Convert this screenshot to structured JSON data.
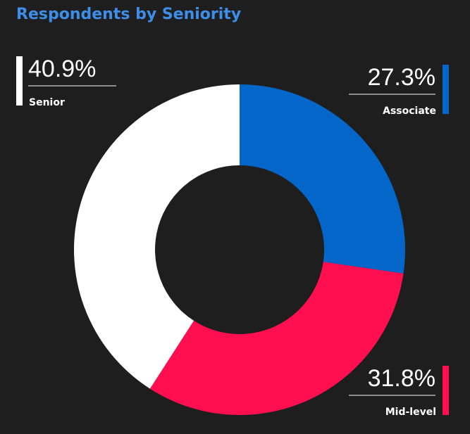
{
  "chart_data": {
    "type": "donut",
    "title": "Respondents by Seniority",
    "categories": [
      "Associate",
      "Mid-level",
      "Senior"
    ],
    "values": [
      27.3,
      31.8,
      40.9
    ],
    "value_labels": [
      "27.3%",
      "31.8%",
      "40.9%"
    ],
    "colors": [
      "#0466c8",
      "#ff0f50",
      "#ffffff"
    ]
  }
}
